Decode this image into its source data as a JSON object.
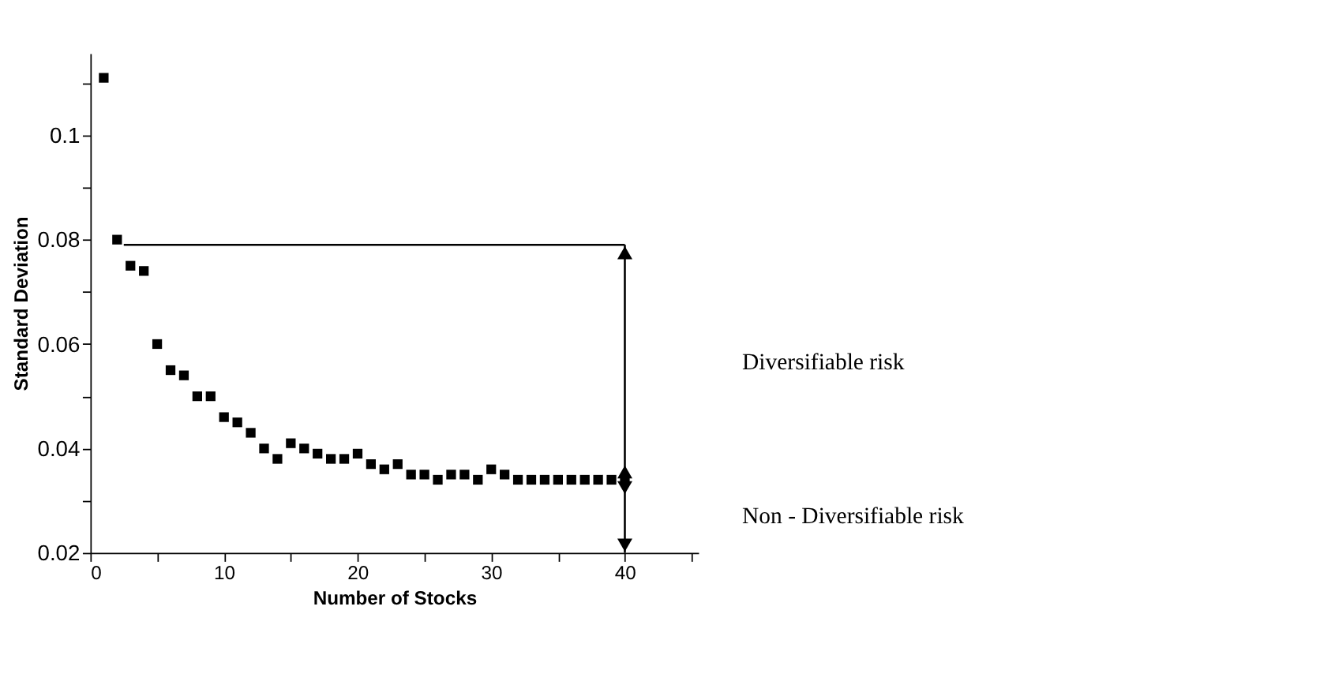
{
  "chart_data": {
    "type": "scatter",
    "xlabel": "Number of Stocks",
    "ylabel": "Standard Deviation",
    "x": [
      1,
      2,
      3,
      4,
      5,
      6,
      7,
      8,
      9,
      10,
      11,
      12,
      13,
      14,
      15,
      16,
      17,
      18,
      19,
      20,
      21,
      22,
      23,
      24,
      25,
      26,
      27,
      28,
      29,
      30,
      31,
      32,
      33,
      34,
      35,
      36,
      37,
      38,
      39,
      40
    ],
    "values": [
      0.111,
      0.08,
      0.075,
      0.074,
      0.06,
      0.055,
      0.054,
      0.05,
      0.05,
      0.046,
      0.045,
      0.043,
      0.04,
      0.038,
      0.041,
      0.04,
      0.039,
      0.038,
      0.038,
      0.039,
      0.037,
      0.036,
      0.037,
      0.035,
      0.035,
      0.034,
      0.035,
      0.035,
      0.034,
      0.036,
      0.035,
      0.034,
      0.034,
      0.034,
      0.034,
      0.034,
      0.034,
      0.034,
      0.034,
      0.034
    ],
    "color": "#000000",
    "marker": "square",
    "grid": false,
    "xlim": [
      0,
      45.5
    ],
    "ylim": [
      0.02,
      0.1157
    ],
    "xticks": [
      0,
      {
        "value": 5,
        "label": null
      },
      10,
      {
        "value": 15,
        "label": null
      },
      20,
      {
        "value": 25,
        "label": null
      },
      30,
      {
        "value": 35,
        "label": null
      },
      40,
      {
        "value": 45,
        "label": null
      }
    ],
    "yticks": [
      0.02,
      {
        "value": 0.03,
        "label": null
      },
      0.04,
      {
        "value": 0.05,
        "label": null
      },
      0.06,
      {
        "value": 0.07,
        "label": null
      },
      0.08,
      {
        "value": 0.09,
        "label": null
      },
      0.1,
      {
        "value": 0.11,
        "label": null
      }
    ],
    "ref_lines": [
      {
        "axis": "y",
        "value": 0.079
      }
    ],
    "annotations": [
      "Diversifiable risk",
      "Non - Diversifiable risk"
    ]
  }
}
